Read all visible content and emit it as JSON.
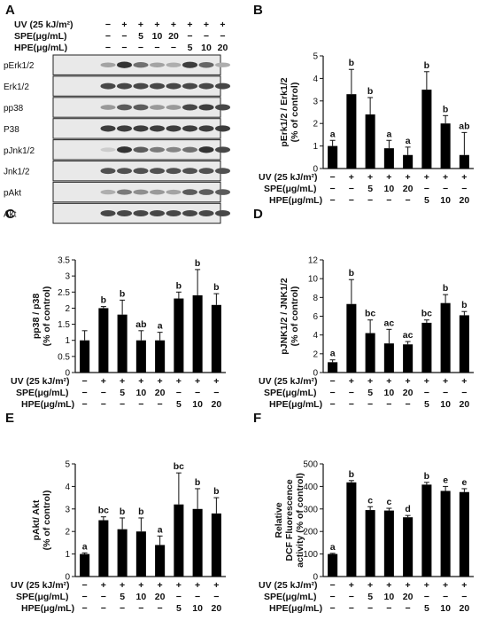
{
  "blot": {
    "panel_label": "A",
    "conditions": [
      {
        "label": "UV (25 kJ/m²)",
        "values": [
          "−",
          "+",
          "+",
          "+",
          "+",
          "+",
          "+",
          "+"
        ]
      },
      {
        "label": "SPE(μg/mL)",
        "values": [
          "−",
          "−",
          "5",
          "10",
          "20",
          "−",
          "−",
          "−"
        ]
      },
      {
        "label": "HPE(μg/mL)",
        "values": [
          "−",
          "−",
          "−",
          "−",
          "−",
          "5",
          "10",
          "20"
        ]
      }
    ],
    "rows": [
      {
        "label": "pErk1/2",
        "intensity": [
          0.35,
          0.9,
          0.6,
          0.35,
          0.3,
          0.85,
          0.65,
          0.3
        ]
      },
      {
        "label": "Erk1/2",
        "intensity": [
          0.8,
          0.8,
          0.8,
          0.8,
          0.8,
          0.8,
          0.8,
          0.8
        ]
      },
      {
        "label": "pp38",
        "intensity": [
          0.4,
          0.7,
          0.7,
          0.4,
          0.4,
          0.8,
          0.85,
          0.8
        ]
      },
      {
        "label": "P38",
        "intensity": [
          0.85,
          0.85,
          0.85,
          0.85,
          0.85,
          0.85,
          0.85,
          0.85
        ]
      },
      {
        "label": "pJnk1/2",
        "intensity": [
          0.15,
          0.9,
          0.7,
          0.55,
          0.5,
          0.6,
          0.9,
          0.8
        ]
      },
      {
        "label": "Jnk1/2",
        "intensity": [
          0.75,
          0.75,
          0.75,
          0.75,
          0.75,
          0.75,
          0.75,
          0.75
        ]
      },
      {
        "label": "pAkt",
        "intensity": [
          0.3,
          0.55,
          0.45,
          0.4,
          0.35,
          0.7,
          0.7,
          0.7
        ]
      },
      {
        "label": "Akt",
        "intensity": [
          0.8,
          0.8,
          0.8,
          0.8,
          0.8,
          0.8,
          0.8,
          0.8
        ]
      }
    ]
  },
  "chart_data": [
    {
      "panel_label": "B",
      "type": "bar",
      "ylabel": "pErk1/2 / Erk1/2\n(% of control)",
      "ylim": [
        0,
        5
      ],
      "yticks": [
        0,
        1,
        2,
        3,
        4,
        5
      ],
      "values": [
        1.0,
        3.3,
        2.4,
        0.9,
        0.6,
        3.5,
        2.0,
        0.6
      ],
      "errors": [
        0.25,
        1.1,
        0.75,
        0.35,
        0.35,
        0.8,
        0.35,
        1.0
      ],
      "sig": [
        "a",
        "b",
        "b",
        "a",
        "a",
        "b",
        "b",
        "ab"
      ],
      "conditions": [
        {
          "label": "UV (25 kJ/m²)",
          "values": [
            "−",
            "+",
            "+",
            "+",
            "+",
            "+",
            "+",
            "+"
          ]
        },
        {
          "label": "SPE(μg/mL)",
          "values": [
            "−",
            "−",
            "5",
            "10",
            "20",
            "−",
            "−",
            "−"
          ]
        },
        {
          "label": "HPE(μg/mL)",
          "values": [
            "−",
            "−",
            "−",
            "−",
            "−",
            "5",
            "10",
            "20"
          ]
        }
      ]
    },
    {
      "panel_label": "C",
      "type": "bar",
      "ylabel": "pp38 / p38\n(% of control)",
      "ylim": [
        0,
        3.5
      ],
      "yticks": [
        0.0,
        0.5,
        1.0,
        1.5,
        2.0,
        2.5,
        3.0,
        3.5
      ],
      "values": [
        1.0,
        2.0,
        1.8,
        1.0,
        1.0,
        2.3,
        2.4,
        2.1
      ],
      "errors": [
        0.3,
        0.05,
        0.45,
        0.3,
        0.25,
        0.2,
        0.8,
        0.35
      ],
      "sig": [
        "",
        "b",
        "b",
        "ab",
        "a",
        "b",
        "b",
        "b"
      ],
      "conditions": [
        {
          "label": "UV (25 kJ/m²)",
          "values": [
            "−",
            "+",
            "+",
            "+",
            "+",
            "+",
            "+",
            "+"
          ]
        },
        {
          "label": "SPE(μg/mL)",
          "values": [
            "−",
            "−",
            "5",
            "10",
            "20",
            "−",
            "−",
            "−"
          ]
        },
        {
          "label": "HPE(μg/mL)",
          "values": [
            "−",
            "−",
            "−",
            "−",
            "−",
            "5",
            "10",
            "20"
          ]
        }
      ]
    },
    {
      "panel_label": "D",
      "type": "bar",
      "ylabel": "pJNK1/2 / JNK1/2\n(% of control)",
      "ylim": [
        0,
        12
      ],
      "yticks": [
        0,
        2,
        4,
        6,
        8,
        10,
        12
      ],
      "values": [
        1.1,
        7.3,
        4.2,
        3.1,
        3.0,
        5.3,
        7.4,
        6.1
      ],
      "errors": [
        0.25,
        2.6,
        1.4,
        1.5,
        0.3,
        0.3,
        0.9,
        0.4
      ],
      "sig": [
        "a",
        "b",
        "bc",
        "ac",
        "ac",
        "bc",
        "b",
        "b"
      ],
      "conditions": [
        {
          "label": "UV (25 kJ/m²)",
          "values": [
            "−",
            "+",
            "+",
            "+",
            "+",
            "+",
            "+",
            "+"
          ]
        },
        {
          "label": "SPE(μg/mL)",
          "values": [
            "−",
            "−",
            "5",
            "10",
            "20",
            "−",
            "−",
            "−"
          ]
        },
        {
          "label": "HPE(μg/mL)",
          "values": [
            "−",
            "−",
            "−",
            "−",
            "−",
            "5",
            "10",
            "20"
          ]
        }
      ]
    },
    {
      "panel_label": "E",
      "type": "bar",
      "ylabel": "pAkt/ Akt\n(% of control)",
      "ylim": [
        0,
        5
      ],
      "yticks": [
        0,
        1,
        2,
        3,
        4,
        5
      ],
      "values": [
        1.0,
        2.5,
        2.1,
        2.0,
        1.4,
        3.2,
        3.0,
        2.8
      ],
      "errors": [
        0.05,
        0.15,
        0.5,
        0.6,
        0.4,
        1.4,
        0.9,
        0.7
      ],
      "sig": [
        "a",
        "bc",
        "b",
        "b",
        "a",
        "bc",
        "b",
        "b"
      ],
      "conditions": [
        {
          "label": "UV (25 kJ/m²)",
          "values": [
            "−",
            "+",
            "+",
            "+",
            "+",
            "+",
            "+",
            "+"
          ]
        },
        {
          "label": "SPE(μg/mL)",
          "values": [
            "−",
            "−",
            "5",
            "10",
            "20",
            "−",
            "−",
            "−"
          ]
        },
        {
          "label": "HPE(μg/mL)",
          "values": [
            "−",
            "−",
            "−",
            "−",
            "−",
            "5",
            "10",
            "20"
          ]
        }
      ]
    },
    {
      "panel_label": "F",
      "type": "bar",
      "ylabel": "Relative\nDCF Fluorescence\nactivity (% of control)",
      "ylim": [
        0,
        500
      ],
      "yticks": [
        0,
        100,
        200,
        300,
        400,
        500
      ],
      "values": [
        100,
        418,
        295,
        293,
        263,
        408,
        380,
        375
      ],
      "errors": [
        3,
        8,
        15,
        10,
        8,
        10,
        20,
        15
      ],
      "sig": [
        "a",
        "b",
        "c",
        "c",
        "d",
        "b",
        "e",
        "e"
      ],
      "conditions": [
        {
          "label": "UV (25 kJ/m²)",
          "values": [
            "−",
            "+",
            "+",
            "+",
            "+",
            "+",
            "+",
            "+"
          ]
        },
        {
          "label": "SPE(μg/mL)",
          "values": [
            "−",
            "−",
            "5",
            "10",
            "20",
            "−",
            "−",
            "−"
          ]
        },
        {
          "label": "HPE(μg/mL)",
          "values": [
            "−",
            "−",
            "−",
            "−",
            "−",
            "5",
            "10",
            "20"
          ]
        }
      ]
    }
  ]
}
